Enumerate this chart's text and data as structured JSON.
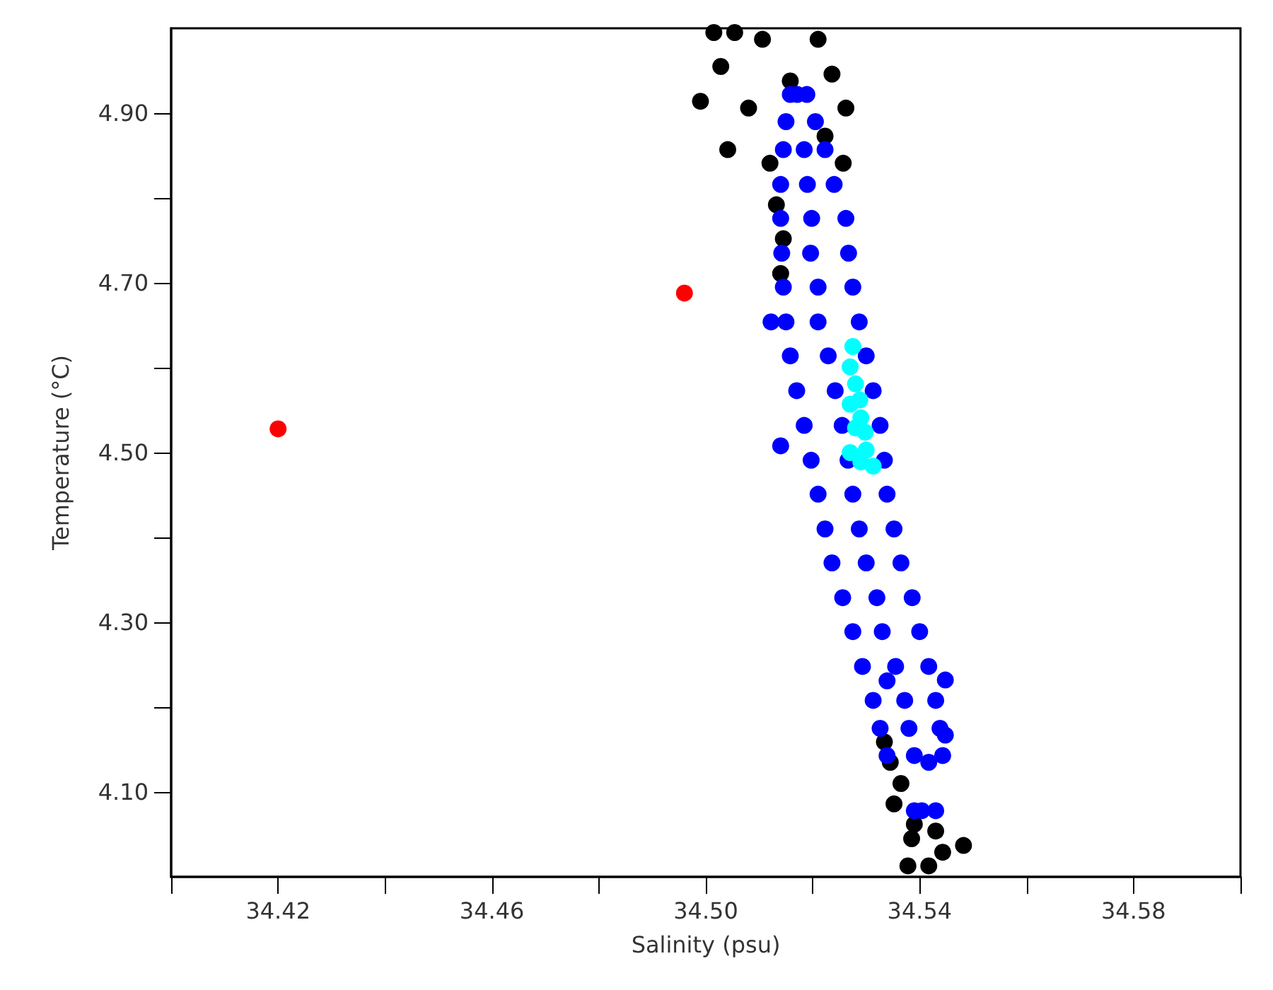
{
  "chart_data": {
    "type": "scatter",
    "xlabel": "Salinity (psu)",
    "ylabel": "Temperature (°C)",
    "xlim": [
      34.4,
      34.6
    ],
    "ylim": [
      4.0,
      5.0
    ],
    "xticks": [
      {
        "value": 34.4,
        "label": null
      },
      {
        "value": 34.42,
        "label": "34.42"
      },
      {
        "value": 34.44,
        "label": null
      },
      {
        "value": 34.46,
        "label": "34.46"
      },
      {
        "value": 34.48,
        "label": null
      },
      {
        "value": 34.5,
        "label": "34.50"
      },
      {
        "value": 34.52,
        "label": null
      },
      {
        "value": 34.54,
        "label": "34.54"
      },
      {
        "value": 34.56,
        "label": null
      },
      {
        "value": 34.58,
        "label": "34.58"
      },
      {
        "value": 34.6,
        "label": null
      }
    ],
    "yticks": [
      {
        "value": 4.1,
        "label": "4.10"
      },
      {
        "value": 4.2,
        "label": null
      },
      {
        "value": 4.3,
        "label": "4.30"
      },
      {
        "value": 4.4,
        "label": null
      },
      {
        "value": 4.5,
        "label": "4.50"
      },
      {
        "value": 4.6,
        "label": null
      },
      {
        "value": 4.7,
        "label": "4.70"
      },
      {
        "value": 4.8,
        "label": null
      },
      {
        "value": 4.9,
        "label": "4.90"
      }
    ],
    "grid": false,
    "marker": "circle",
    "series": [
      {
        "color": "#000000",
        "x": [
          34.5054,
          34.5028,
          34.499,
          34.5106,
          34.521,
          34.5236,
          34.508,
          34.5041,
          34.512,
          34.5223,
          34.5132,
          34.5145,
          34.514,
          34.5262,
          34.5015,
          34.5158,
          34.5257,
          34.5334,
          34.5365,
          34.539,
          34.5417,
          34.5443,
          34.5482,
          34.5378,
          34.5345,
          34.5385,
          34.543,
          34.5352
        ],
        "values": [
          4.995,
          4.955,
          4.914,
          4.987,
          4.987,
          4.946,
          4.906,
          4.857,
          4.841,
          4.873,
          4.792,
          4.752,
          4.711,
          4.906,
          4.995,
          4.938,
          4.841,
          4.159,
          4.11,
          4.062,
          4.013,
          4.029,
          4.037,
          4.013,
          4.135,
          4.045,
          4.054,
          4.086
        ]
      },
      {
        "color": "#0000ff",
        "x": [
          34.5158,
          34.5171,
          34.5189,
          34.5145,
          34.5184,
          34.5223,
          34.514,
          34.5198,
          34.5262,
          34.5145,
          34.521,
          34.5275,
          34.5158,
          34.5229,
          34.53,
          34.5184,
          34.5255,
          34.5326,
          34.521,
          34.5275,
          34.5339,
          34.5236,
          34.53,
          34.5365,
          34.5275,
          34.533,
          34.54,
          34.5313,
          34.5372,
          34.543,
          34.5339,
          34.539,
          34.5443,
          34.539,
          34.5404,
          34.543,
          34.5122,
          34.514,
          34.5339,
          34.5448,
          34.5417,
          34.5448,
          34.515,
          34.5205,
          34.514,
          34.519,
          34.524,
          34.5142,
          34.5196,
          34.5267,
          34.515,
          34.521,
          34.5287,
          34.517,
          34.5242,
          34.5313,
          34.5197,
          34.5266,
          34.5334,
          34.5223,
          34.5287,
          34.5352,
          34.5256,
          34.532,
          34.5386,
          34.5293,
          34.5355,
          34.5417,
          34.5326,
          34.538,
          34.5438
        ],
        "values": [
          4.922,
          4.922,
          4.922,
          4.857,
          4.857,
          4.857,
          4.776,
          4.776,
          4.776,
          4.695,
          4.695,
          4.695,
          4.614,
          4.614,
          4.614,
          4.532,
          4.532,
          4.532,
          4.451,
          4.451,
          4.451,
          4.37,
          4.37,
          4.37,
          4.289,
          4.289,
          4.289,
          4.208,
          4.208,
          4.208,
          4.143,
          4.143,
          4.143,
          4.078,
          4.078,
          4.078,
          4.654,
          4.508,
          4.231,
          4.232,
          4.135,
          4.167,
          4.89,
          4.89,
          4.816,
          4.816,
          4.816,
          4.735,
          4.735,
          4.735,
          4.654,
          4.654,
          4.654,
          4.573,
          4.573,
          4.573,
          4.491,
          4.491,
          4.491,
          4.41,
          4.41,
          4.41,
          4.329,
          4.329,
          4.329,
          4.248,
          4.248,
          4.248,
          4.175,
          4.175,
          4.175
        ]
      },
      {
        "color": "#00ffff",
        "x": [
          34.5275,
          34.527,
          34.528,
          34.5288,
          34.527,
          34.529,
          34.528,
          34.5298,
          34.53,
          34.5313,
          34.529,
          34.527
        ],
        "values": [
          4.625,
          4.601,
          4.581,
          4.562,
          4.557,
          4.541,
          4.529,
          4.524,
          4.503,
          4.484,
          4.489,
          4.5
        ]
      },
      {
        "color": "#ff0000",
        "x": [
          34.42,
          34.496
        ],
        "values": [
          4.528,
          4.688
        ]
      }
    ]
  }
}
